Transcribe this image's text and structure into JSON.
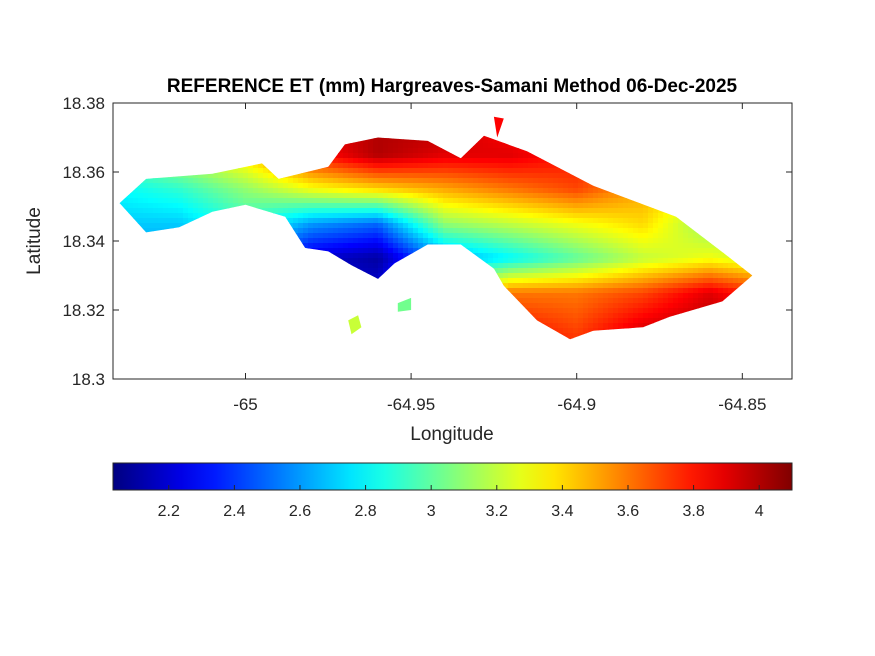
{
  "chart_data": {
    "type": "heatmap",
    "title": "REFERENCE ET (mm) Hargreaves-Samani Method  06-Dec-2025",
    "xlabel": "Longitude",
    "ylabel": "Latitude",
    "xlim": [
      -65.04,
      -64.835
    ],
    "ylim": [
      18.3,
      18.38
    ],
    "x_ticks": [
      -65,
      -64.95,
      -64.9,
      -64.85
    ],
    "x_tick_labels": [
      "-65",
      "-64.95",
      "-64.9",
      "-64.85"
    ],
    "y_ticks": [
      18.3,
      18.32,
      18.34,
      18.36,
      18.38
    ],
    "y_tick_labels": [
      "18.3",
      "18.32",
      "18.34",
      "18.36",
      "18.38"
    ],
    "colormap": "jet",
    "grid": false,
    "colorbar": {
      "orientation": "horizontal",
      "placement": "bottom",
      "range": [
        2.03,
        4.1
      ],
      "ticks": [
        2.2,
        2.4,
        2.6,
        2.8,
        3,
        3.2,
        3.4,
        3.6,
        3.8,
        4
      ],
      "tick_labels": [
        "2.2",
        "2.4",
        "2.6",
        "2.8",
        "3",
        "3.2",
        "3.4",
        "3.6",
        "3.8",
        "4"
      ]
    },
    "island_outline": [
      [
        -65.038,
        18.351
      ],
      [
        -65.03,
        18.358
      ],
      [
        -65.01,
        18.3595
      ],
      [
        -64.995,
        18.3625
      ],
      [
        -64.99,
        18.358
      ],
      [
        -64.975,
        18.3615
      ],
      [
        -64.97,
        18.368
      ],
      [
        -64.96,
        18.37
      ],
      [
        -64.945,
        18.369
      ],
      [
        -64.935,
        18.364
      ],
      [
        -64.928,
        18.3705
      ],
      [
        -64.915,
        18.366
      ],
      [
        -64.895,
        18.356
      ],
      [
        -64.87,
        18.347
      ],
      [
        -64.855,
        18.336
      ],
      [
        -64.847,
        18.33
      ],
      [
        -64.856,
        18.3225
      ],
      [
        -64.872,
        18.318
      ],
      [
        -64.88,
        18.315
      ],
      [
        -64.895,
        18.314
      ],
      [
        -64.902,
        18.3115
      ],
      [
        -64.912,
        18.317
      ],
      [
        -64.922,
        18.327
      ],
      [
        -64.925,
        18.332
      ],
      [
        -64.935,
        18.339
      ],
      [
        -64.945,
        18.339
      ],
      [
        -64.955,
        18.3335
      ],
      [
        -64.96,
        18.329
      ],
      [
        -64.968,
        18.333
      ],
      [
        -64.975,
        18.337
      ],
      [
        -64.982,
        18.338
      ],
      [
        -64.988,
        18.347
      ],
      [
        -65.0,
        18.3505
      ],
      [
        -65.01,
        18.3485
      ],
      [
        -65.02,
        18.344
      ],
      [
        -65.03,
        18.3425
      ],
      [
        -65.038,
        18.351
      ]
    ],
    "islets": [
      [
        [
          -64.969,
          18.317
        ],
        [
          -64.966,
          18.3185
        ],
        [
          -64.965,
          18.315
        ],
        [
          -64.968,
          18.313
        ]
      ],
      [
        [
          -64.954,
          18.322
        ],
        [
          -64.95,
          18.3235
        ],
        [
          -64.95,
          18.32
        ],
        [
          -64.954,
          18.3195
        ]
      ],
      [
        [
          -64.925,
          18.376
        ],
        [
          -64.922,
          18.3755
        ],
        [
          -64.924,
          18.37
        ]
      ]
    ],
    "et_field": {
      "lon": [
        -65.04,
        -65.02,
        -65.0,
        -64.98,
        -64.96,
        -64.94,
        -64.92,
        -64.9,
        -64.88,
        -64.86,
        -64.84
      ],
      "lat": [
        18.375,
        18.365,
        18.355,
        18.345,
        18.335,
        18.325,
        18.315,
        18.305
      ],
      "values": [
        [
          3.2,
          3.4,
          3.6,
          3.9,
          4.0,
          4.0,
          3.8,
          3.7,
          3.6,
          3.5,
          3.5
        ],
        [
          3.0,
          3.2,
          3.4,
          3.8,
          4.0,
          3.9,
          3.9,
          3.8,
          3.6,
          3.5,
          3.4
        ],
        [
          2.8,
          2.9,
          3.1,
          3.3,
          3.4,
          3.5,
          3.6,
          3.7,
          3.5,
          3.3,
          3.3
        ],
        [
          2.7,
          2.7,
          2.9,
          2.6,
          2.5,
          3.1,
          3.2,
          3.3,
          3.4,
          3.1,
          3.2
        ],
        [
          2.6,
          2.6,
          2.5,
          2.2,
          2.1,
          2.6,
          2.8,
          3.0,
          3.2,
          3.3,
          3.2
        ],
        [
          2.7,
          2.6,
          2.4,
          2.2,
          2.2,
          3.2,
          3.6,
          3.6,
          3.7,
          3.9,
          3.7
        ],
        [
          2.8,
          2.8,
          2.6,
          2.4,
          3.8,
          3.7,
          3.8,
          3.7,
          3.9,
          4.0,
          3.9
        ],
        [
          2.9,
          2.9,
          2.8,
          2.7,
          3.8,
          3.8,
          3.9,
          3.8,
          3.9,
          4.0,
          4.0
        ]
      ]
    }
  }
}
